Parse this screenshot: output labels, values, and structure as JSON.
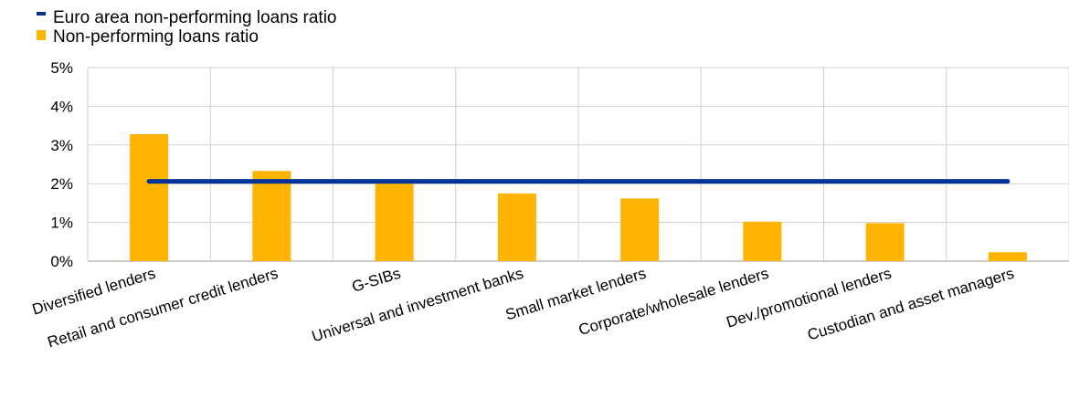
{
  "colors": {
    "bar": "#ffb400",
    "line": "#003299",
    "grid": "#d0d0d0",
    "axis": "#999999"
  },
  "legend": {
    "line_label": "Euro area non-performing loans ratio",
    "bar_label": "Non-performing loans ratio"
  },
  "chart_data": {
    "type": "bar",
    "categories": [
      "Diversified lenders",
      "Retail and consumer credit lenders",
      "G-SIBs",
      "Universal and investment banks",
      "Small market lenders",
      "Corporate/wholesale lenders",
      "Dev./promotional lenders",
      "Custodian and asset managers"
    ],
    "series": [
      {
        "name": "Non-performing loans ratio",
        "type": "bar",
        "values": [
          3.28,
          2.33,
          2.0,
          1.75,
          1.62,
          1.02,
          0.98,
          0.23
        ]
      },
      {
        "name": "Euro area non-performing loans ratio",
        "type": "line",
        "values": [
          2.06,
          2.06,
          2.06,
          2.06,
          2.06,
          2.06,
          2.06,
          2.06
        ]
      }
    ],
    "yticks": [
      "0%",
      "1%",
      "2%",
      "3%",
      "4%",
      "5%"
    ],
    "ylim": [
      0,
      5
    ],
    "grid": true,
    "legend_position": "top-left"
  }
}
